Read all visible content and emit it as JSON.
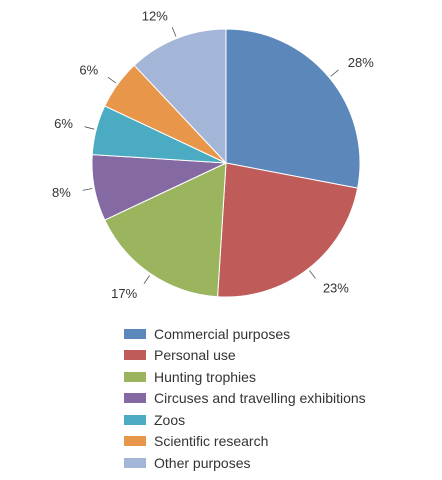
{
  "chart_data": {
    "type": "pie",
    "title": "",
    "categories": [
      "Commercial purposes",
      "Personal use",
      "Hunting trophies",
      "Circuses and travelling exhibitions",
      "Zoos",
      "Scientific research",
      "Other purposes"
    ],
    "values": [
      28,
      23,
      17,
      8,
      6,
      6,
      12
    ],
    "value_labels": [
      "28%",
      "23%",
      "17%",
      "8%",
      "6%",
      "6%",
      "12%"
    ],
    "colors": [
      "#5b87ba",
      "#bf5b59",
      "#9bb55e",
      "#8469a3",
      "#4aabc2",
      "#e8964a",
      "#a4b6d8"
    ],
    "start_angle_deg": 0,
    "direction": "clockwise",
    "legend_placement": "bottom"
  }
}
